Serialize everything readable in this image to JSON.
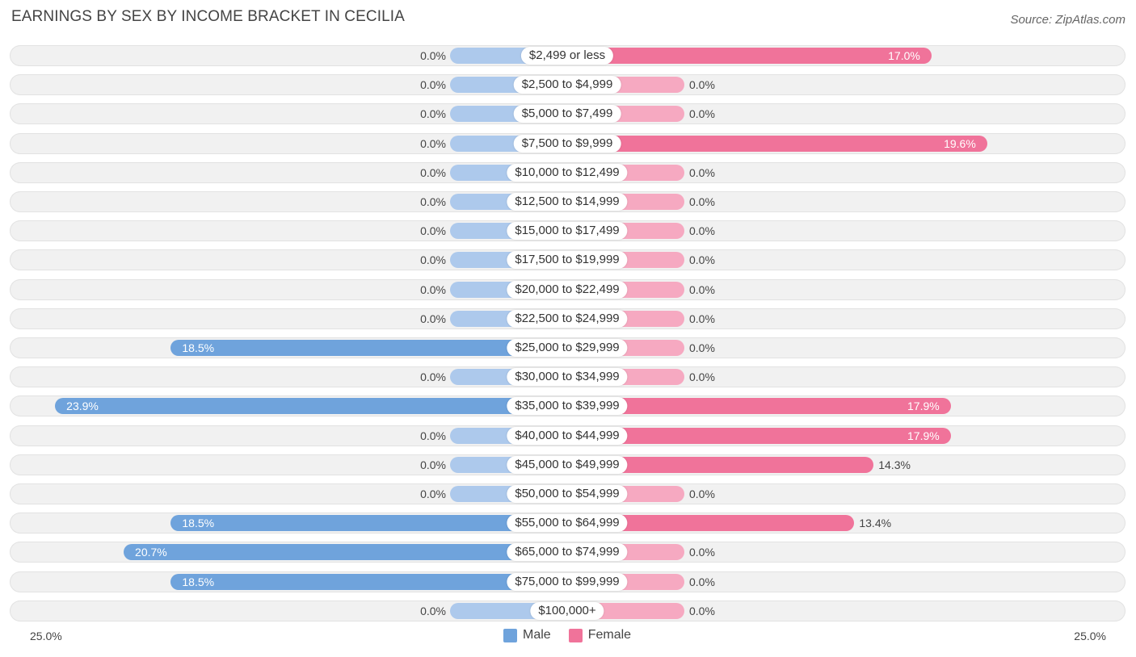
{
  "header": {
    "title": "EARNINGS BY SEX BY INCOME BRACKET IN CECILIA",
    "source": "Source: ZipAtlas.com"
  },
  "colors": {
    "male": "#6fa3dc",
    "male_light": "#adc9ec",
    "female": "#f0739a",
    "female_light": "#f6a9c1"
  },
  "chart_data": {
    "type": "bar",
    "orientation": "horizontal-diverging",
    "title": "EARNINGS BY SEX BY INCOME BRACKET IN CECILIA",
    "categories": [
      "$2,499 or less",
      "$2,500 to $4,999",
      "$5,000 to $7,499",
      "$7,500 to $9,999",
      "$10,000 to $12,499",
      "$12,500 to $14,999",
      "$15,000 to $17,499",
      "$17,500 to $19,999",
      "$20,000 to $22,499",
      "$22,500 to $24,999",
      "$25,000 to $29,999",
      "$30,000 to $34,999",
      "$35,000 to $39,999",
      "$40,000 to $44,999",
      "$45,000 to $49,999",
      "$50,000 to $54,999",
      "$55,000 to $64,999",
      "$65,000 to $74,999",
      "$75,000 to $99,999",
      "$100,000+"
    ],
    "series": [
      {
        "name": "Male",
        "values": [
          0.0,
          0.0,
          0.0,
          0.0,
          0.0,
          0.0,
          0.0,
          0.0,
          0.0,
          0.0,
          18.5,
          0.0,
          23.9,
          0.0,
          0.0,
          0.0,
          18.5,
          20.7,
          18.5,
          0.0
        ],
        "labels": [
          "0.0%",
          "0.0%",
          "0.0%",
          "0.0%",
          "0.0%",
          "0.0%",
          "0.0%",
          "0.0%",
          "0.0%",
          "0.0%",
          "18.5%",
          "0.0%",
          "23.9%",
          "0.0%",
          "0.0%",
          "0.0%",
          "18.5%",
          "20.7%",
          "18.5%",
          "0.0%"
        ]
      },
      {
        "name": "Female",
        "values": [
          17.0,
          0.0,
          0.0,
          19.6,
          0.0,
          0.0,
          0.0,
          0.0,
          0.0,
          0.0,
          0.0,
          0.0,
          17.9,
          17.9,
          14.3,
          0.0,
          13.4,
          0.0,
          0.0,
          0.0
        ],
        "labels": [
          "17.0%",
          "0.0%",
          "0.0%",
          "19.6%",
          "0.0%",
          "0.0%",
          "0.0%",
          "0.0%",
          "0.0%",
          "0.0%",
          "0.0%",
          "0.0%",
          "17.9%",
          "17.9%",
          "14.3%",
          "0.0%",
          "13.4%",
          "0.0%",
          "0.0%",
          "0.0%"
        ]
      }
    ],
    "xlim": [
      -25.0,
      25.0
    ],
    "axis_labels": {
      "left": "25.0%",
      "right": "25.0%"
    },
    "legend": [
      "Male",
      "Female"
    ],
    "legend_position": "bottom-center"
  }
}
